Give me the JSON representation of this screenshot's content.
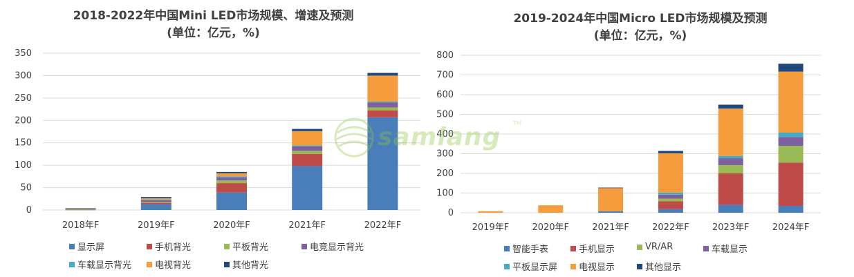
{
  "chart_data": [
    {
      "type": "bar",
      "stacked": true,
      "title": "2018-2022年中国Mini LED市场规模、增速及预测",
      "subtitle": "(单位：亿元，%)",
      "categories": [
        "2018年F",
        "2019年F",
        "2020年F",
        "2021年F",
        "2022年F"
      ],
      "ylim": [
        0,
        350
      ],
      "yticks": [
        0,
        50,
        100,
        150,
        200,
        250,
        300,
        350
      ],
      "grid": true,
      "legend_position": "bottom",
      "series": [
        {
          "name": "显示屏",
          "color": "#4a7ebb",
          "values": [
            0.5,
            13,
            39,
            98,
            207
          ]
        },
        {
          "name": "手机背光",
          "color": "#be4b48",
          "values": [
            0.5,
            3,
            21,
            27,
            15
          ]
        },
        {
          "name": "平板背光",
          "color": "#98b954",
          "values": [
            0.5,
            2,
            6,
            7,
            7
          ]
        },
        {
          "name": "电竞显示背光",
          "color": "#7d60a0",
          "values": [
            1,
            4,
            7,
            10,
            11
          ]
        },
        {
          "name": "车载显示背光",
          "color": "#46aac4",
          "values": [
            0.5,
            1,
            2,
            2,
            2
          ]
        },
        {
          "name": "电视背光",
          "color": "#f59d3d",
          "values": [
            0.5,
            3,
            7,
            32,
            58
          ]
        },
        {
          "name": "其他背光",
          "color": "#1f497d",
          "values": [
            0.5,
            3,
            3,
            5,
            6
          ]
        }
      ]
    },
    {
      "type": "bar",
      "stacked": true,
      "title": "2019-2024年中国Micro LED市场规模及预测",
      "subtitle": "(单位：亿元，%)",
      "categories": [
        "2019年F",
        "2020年F",
        "2021年F",
        "2022年F",
        "2023年F",
        "2024年F"
      ],
      "ylim": [
        0,
        800
      ],
      "yticks": [
        0,
        100,
        200,
        300,
        400,
        500,
        600,
        700,
        800
      ],
      "grid": true,
      "legend_position": "bottom",
      "series": [
        {
          "name": "智能手表",
          "color": "#4a7ebb",
          "values": [
            0,
            0,
            8,
            18,
            40,
            35
          ]
        },
        {
          "name": "手机显示",
          "color": "#be4b48",
          "values": [
            0,
            0,
            0,
            40,
            160,
            220
          ]
        },
        {
          "name": "VR/AR",
          "color": "#98b954",
          "values": [
            0,
            0,
            0,
            14,
            42,
            85
          ]
        },
        {
          "name": "车载显示",
          "color": "#7d60a0",
          "values": [
            0,
            0,
            0,
            20,
            35,
            45
          ]
        },
        {
          "name": "平板显示屏",
          "color": "#46aac4",
          "values": [
            0,
            0,
            0,
            10,
            12,
            22
          ]
        },
        {
          "name": "电视显示",
          "color": "#f59d3d",
          "values": [
            8,
            38,
            117,
            200,
            240,
            310
          ]
        },
        {
          "name": "其他显示",
          "color": "#1f497d",
          "values": [
            0,
            0,
            3,
            12,
            20,
            40
          ]
        }
      ]
    }
  ],
  "watermark": {
    "text": "samlang",
    "tm": "TM"
  }
}
